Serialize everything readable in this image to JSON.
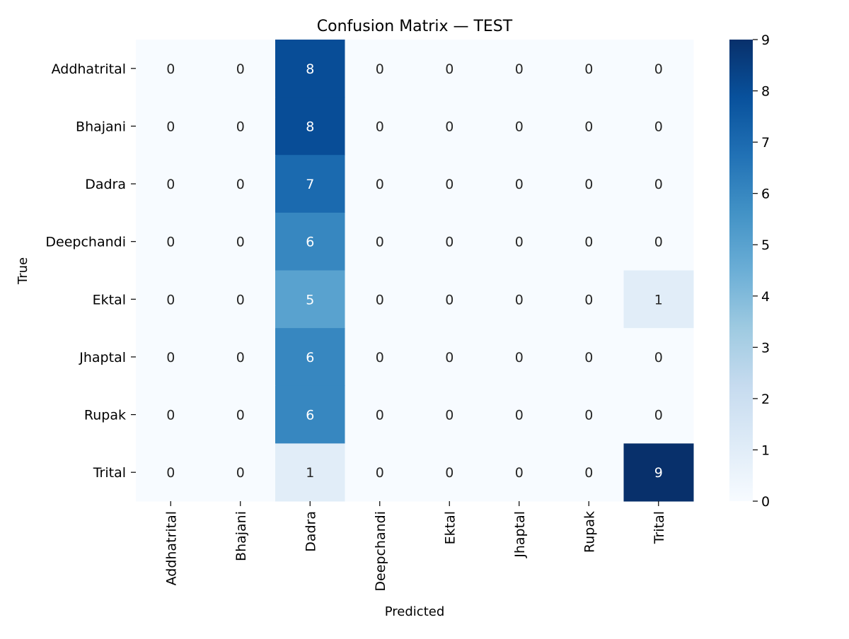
{
  "chart_data": {
    "type": "heatmap",
    "title": "Confusion Matrix — TEST",
    "xlabel": "Predicted",
    "ylabel": "True",
    "x_categories": [
      "Addhatrital",
      "Bhajani",
      "Dadra",
      "Deepchandi",
      "Ektal",
      "Jhaptal",
      "Rupak",
      "Trital"
    ],
    "y_categories": [
      "Addhatrital",
      "Bhajani",
      "Dadra",
      "Deepchandi",
      "Ektal",
      "Jhaptal",
      "Rupak",
      "Trital"
    ],
    "values": [
      [
        0,
        0,
        8,
        0,
        0,
        0,
        0,
        0
      ],
      [
        0,
        0,
        8,
        0,
        0,
        0,
        0,
        0
      ],
      [
        0,
        0,
        7,
        0,
        0,
        0,
        0,
        0
      ],
      [
        0,
        0,
        6,
        0,
        0,
        0,
        0,
        0
      ],
      [
        0,
        0,
        5,
        0,
        0,
        0,
        0,
        1
      ],
      [
        0,
        0,
        6,
        0,
        0,
        0,
        0,
        0
      ],
      [
        0,
        0,
        6,
        0,
        0,
        0,
        0,
        0
      ],
      [
        0,
        0,
        1,
        0,
        0,
        0,
        0,
        9
      ]
    ],
    "colorbar": {
      "min": 0,
      "max": 9,
      "ticks": [
        0,
        1,
        2,
        3,
        4,
        5,
        6,
        7,
        8,
        9
      ],
      "colormap": "Blues"
    },
    "annotations": true
  }
}
